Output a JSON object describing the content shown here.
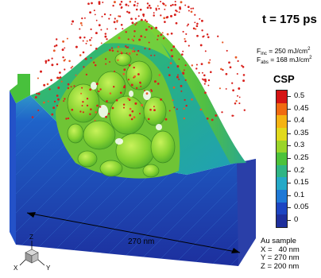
{
  "time_label": "t = 175 ps",
  "fluence": {
    "inc_prefix": "F",
    "inc_sub": "inc",
    "inc_value": "= 250 mJ/cm",
    "inc_exp": "2",
    "abs_prefix": "F",
    "abs_sub": "abs",
    "abs_value": "= 168 mJ/cm",
    "abs_exp": "2"
  },
  "colorbar": {
    "title": "CSP",
    "ticks": [
      "0.5",
      "0.45",
      "0.4",
      "0.35",
      "0.3",
      "0.25",
      "0.2",
      "0.15",
      "0.1",
      "0.05",
      "0"
    ],
    "colors": [
      "#d51414",
      "#f06a10",
      "#f5b312",
      "#e1d91c",
      "#9ad52a",
      "#4cc23a",
      "#2fb584",
      "#25a9c7",
      "#1f79d6",
      "#1d45c2",
      "#1e2f9c"
    ]
  },
  "dimension_label": "270 nm",
  "axes": {
    "z": "Z",
    "y": "Y",
    "x": "X"
  },
  "sample": {
    "title": "Au sample",
    "x": "X =   40 nm",
    "y": "Y = 270 nm",
    "z": "Z = 200 nm"
  }
}
